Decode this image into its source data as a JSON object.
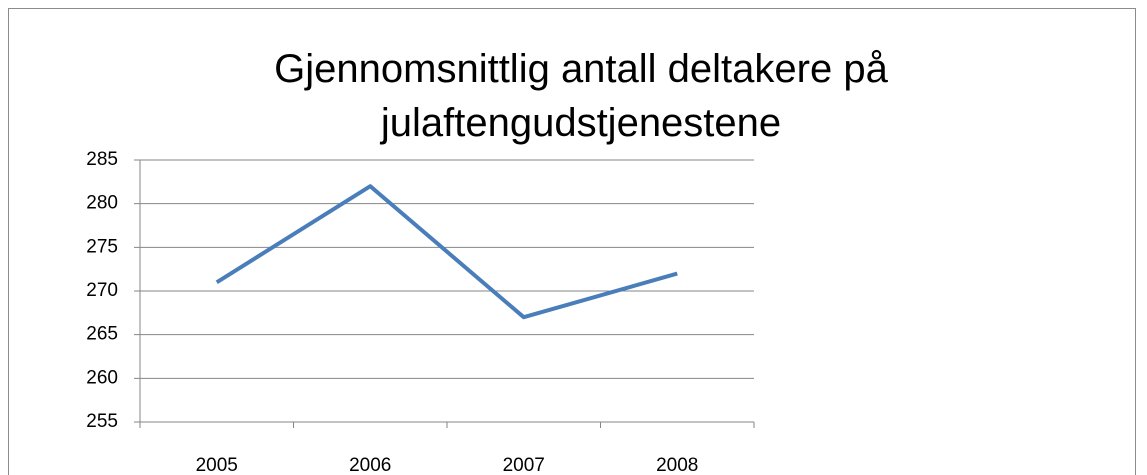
{
  "chart_data": {
    "type": "line",
    "title": "Gjennomsnittlig antall deltakere på julaftengudstjenestene",
    "categories": [
      "2005",
      "2006",
      "2007",
      "2008"
    ],
    "values": [
      271,
      282,
      267,
      272
    ],
    "color": "#4a7ebb",
    "ylim": [
      255,
      285
    ],
    "yticks": [
      255,
      260,
      265,
      270,
      275,
      280,
      285
    ],
    "grid": true
  }
}
